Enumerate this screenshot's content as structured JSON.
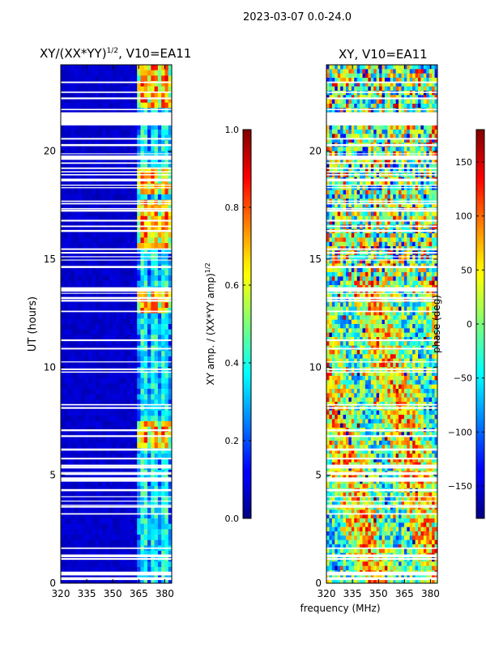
{
  "figure": {
    "suptitle": "2023-03-07 0.0-24.0",
    "xlabel": "frequency (MHz)",
    "ylabel": "UT (hours)"
  },
  "chart_data": [
    {
      "type": "heatmap",
      "title": "XY/(XX*YY)",
      "title_sup": "1/2",
      "title_suffix": ", V10=EA11",
      "xlim": [
        320,
        384
      ],
      "ylim": [
        0,
        24
      ],
      "xticks": [
        320,
        335,
        350,
        365,
        380
      ],
      "yticks": [
        0,
        5,
        10,
        15,
        20
      ],
      "colorbar": {
        "label": "XY amp. / (XX*YY amp)",
        "label_sup": "1/2",
        "range": [
          0.0,
          1.0
        ],
        "ticks": [
          "0.0",
          "0.2",
          "0.4",
          "0.6",
          "0.8",
          "1.0"
        ],
        "tick_values": [
          0.0,
          0.2,
          0.4,
          0.6,
          0.8,
          1.0
        ],
        "colormap": "jet"
      },
      "blank_bands_ut": [
        [
          21.2,
          21.8
        ],
        [
          19.6,
          19.8
        ],
        [
          13.5,
          13.7
        ],
        [
          4.7,
          4.9
        ],
        [
          1.2,
          1.3
        ],
        [
          0.4,
          0.5
        ]
      ]
    },
    {
      "type": "heatmap",
      "title": "XY, V10=EA11",
      "xlim": [
        320,
        384
      ],
      "ylim": [
        0,
        24
      ],
      "xticks": [
        320,
        335,
        350,
        365,
        380
      ],
      "yticks": [
        0,
        5,
        10,
        15,
        20
      ],
      "colorbar": {
        "label": "phase (deg)",
        "range": [
          -180,
          180
        ],
        "ticks": [
          "150",
          "100",
          "50",
          "0",
          "−50",
          "−100",
          "−150"
        ],
        "tick_values": [
          150,
          100,
          50,
          0,
          -50,
          -100,
          -150
        ],
        "colormap": "jet"
      }
    }
  ]
}
